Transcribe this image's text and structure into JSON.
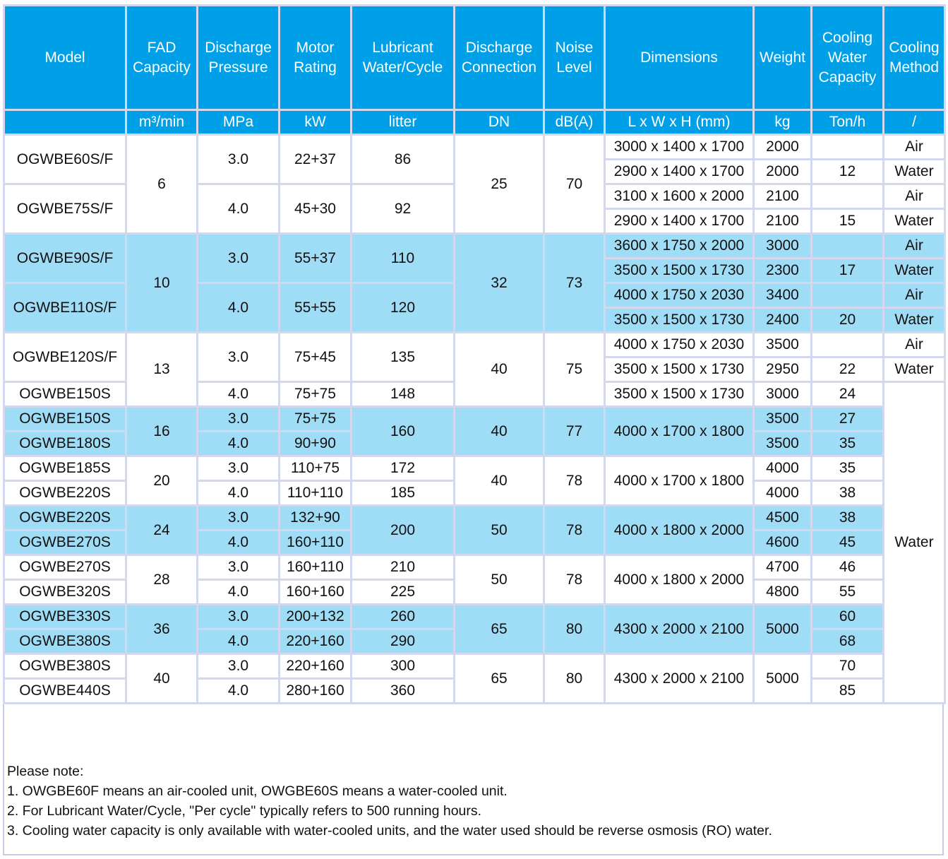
{
  "header": {
    "model": "Model",
    "fad": [
      "FAD",
      "Capacity"
    ],
    "discharge_pressure": [
      "Discharge",
      "Pressure"
    ],
    "motor_rating": [
      "Motor",
      "Rating"
    ],
    "lubricant": [
      "Lubricant",
      "Water/Cycle"
    ],
    "discharge_connection": [
      "Discharge",
      "Connection"
    ],
    "noise": [
      "Noise",
      "Level"
    ],
    "dimensions": "Dimensions",
    "weight": "Weight",
    "cooling_water": [
      "Cooling",
      "Water",
      "Capacity"
    ],
    "cooling_method": [
      "Cooling",
      "Method"
    ]
  },
  "units": {
    "fad": "m³/min",
    "pressure": "MPa",
    "motor": "kW",
    "lubricant": "litter",
    "connection": "DN",
    "noise": "dB(A)",
    "dimensions": "L x W x H (mm)",
    "weight": "kg",
    "cooling_water": "Ton/h",
    "cooling_method": "/"
  },
  "groups": [
    {
      "fad": "6",
      "connection": "25",
      "noise": "70",
      "models": [
        {
          "model": "OGWBE60S/F",
          "pressure": "3.0",
          "motor": "22+37",
          "lubricant": "86",
          "variants": [
            {
              "dimensions": "3000 x 1400 x 1700",
              "weight": "2000",
              "cooling_water": "",
              "cooling_method": "Air"
            },
            {
              "dimensions": "2900 x 1400 x 1700",
              "weight": "2000",
              "cooling_water": "12",
              "cooling_method": "Water"
            }
          ]
        },
        {
          "model": "OGWBE75S/F",
          "pressure": "4.0",
          "motor": "45+30",
          "lubricant": "92",
          "variants": [
            {
              "dimensions": "3100 x 1600 x 2000",
              "weight": "2100",
              "cooling_water": "",
              "cooling_method": "Air"
            },
            {
              "dimensions": "2900 x 1400 x 1700",
              "weight": "2100",
              "cooling_water": "15",
              "cooling_method": "Water"
            }
          ]
        }
      ]
    },
    {
      "fad": "10",
      "connection": "32",
      "noise": "73",
      "models": [
        {
          "model": "OGWBE90S/F",
          "pressure": "3.0",
          "motor": "55+37",
          "lubricant": "110",
          "variants": [
            {
              "dimensions": "3600 x 1750 x 2000",
              "weight": "3000",
              "cooling_water": "",
              "cooling_method": "Air"
            },
            {
              "dimensions": "3500 x 1500 x 1730",
              "weight": "2300",
              "cooling_water": "17",
              "cooling_method": "Water"
            }
          ]
        },
        {
          "model": "OGWBE110S/F",
          "pressure": "4.0",
          "motor": "55+55",
          "lubricant": "120",
          "variants": [
            {
              "dimensions": "4000 x 1750 x 2030",
              "weight": "3400",
              "cooling_water": "",
              "cooling_method": "Air"
            },
            {
              "dimensions": "3500 x 1500 x 1730",
              "weight": "2400",
              "cooling_water": "20",
              "cooling_method": "Water"
            }
          ]
        }
      ]
    },
    {
      "fad": "13",
      "connection": "40",
      "noise": "75",
      "model_a": {
        "model": "OGWBE120S/F",
        "pressure": "3.0",
        "motor": "75+45",
        "lubricant": "135",
        "variants": [
          {
            "dimensions": "4000 x 1750 x 2030",
            "weight": "3500",
            "cooling_water": "",
            "cooling_method": "Air"
          },
          {
            "dimensions": "3500 x 1500 x 1730",
            "weight": "2950",
            "cooling_water": "22",
            "cooling_method": "Water"
          }
        ]
      },
      "model_b": {
        "model": "OGWBE150S",
        "pressure": "4.0",
        "motor": "75+75",
        "lubricant": "148",
        "dimensions": "3500 x 1500 x 1730",
        "weight": "3000",
        "cooling_water": "24"
      }
    }
  ],
  "water_method": "Water",
  "pairs": [
    {
      "fad": "16",
      "lubricant": "160",
      "connection": "40",
      "noise": "77",
      "dimensions": "4000 x 1700 x 1800",
      "weight": "",
      "rows": [
        {
          "model": "OGWBE150S",
          "pressure": "3.0",
          "motor": "75+75",
          "weight": "3500",
          "cooling_water": "27"
        },
        {
          "model": "OGWBE180S",
          "pressure": "4.0",
          "motor": "90+90",
          "weight": "3500",
          "cooling_water": "35"
        }
      ]
    },
    {
      "fad": "20",
      "lubricant": "",
      "connection": "40",
      "noise": "78",
      "dimensions": "4000 x 1700 x 1800",
      "weight": "",
      "rows": [
        {
          "model": "OGWBE185S",
          "pressure": "3.0",
          "motor": "110+75",
          "lubricant": "172",
          "weight": "4000",
          "cooling_water": "35"
        },
        {
          "model": "OGWBE220S",
          "pressure": "4.0",
          "motor": "110+110",
          "lubricant": "185",
          "weight": "4000",
          "cooling_water": "38"
        }
      ]
    },
    {
      "fad": "24",
      "lubricant": "200",
      "connection": "50",
      "noise": "78",
      "dimensions": "4000 x 1800 x 2000",
      "weight": "",
      "rows": [
        {
          "model": "OGWBE220S",
          "pressure": "3.0",
          "motor": "132+90",
          "weight": "4500",
          "cooling_water": "38"
        },
        {
          "model": "OGWBE270S",
          "pressure": "4.0",
          "motor": "160+110",
          "weight": "4600",
          "cooling_water": "45"
        }
      ]
    },
    {
      "fad": "28",
      "lubricant": "",
      "connection": "50",
      "noise": "78",
      "dimensions": "4000 x 1800 x 2000",
      "weight": "",
      "rows": [
        {
          "model": "OGWBE270S",
          "pressure": "3.0",
          "motor": "160+110",
          "lubricant": "210",
          "weight": "4700",
          "cooling_water": "46"
        },
        {
          "model": "OGWBE320S",
          "pressure": "4.0",
          "motor": "160+160",
          "lubricant": "225",
          "weight": "4800",
          "cooling_water": "55"
        }
      ]
    },
    {
      "fad": "36",
      "lubricant": "",
      "connection": "65",
      "noise": "80",
      "dimensions": "4300 x 2000 x 2100",
      "weight": "5000",
      "rows": [
        {
          "model": "OGWBE330S",
          "pressure": "3.0",
          "motor": "200+132",
          "lubricant": "260",
          "cooling_water": "60"
        },
        {
          "model": "OGWBE380S",
          "pressure": "4.0",
          "motor": "220+160",
          "lubricant": "290",
          "cooling_water": "68"
        }
      ]
    },
    {
      "fad": "40",
      "lubricant": "",
      "connection": "65",
      "noise": "80",
      "dimensions": "4300 x 2000 x 2100",
      "weight": "5000",
      "rows": [
        {
          "model": "OGWBE380S",
          "pressure": "3.0",
          "motor": "220+160",
          "lubricant": "300",
          "cooling_water": "70"
        },
        {
          "model": "OGWBE440S",
          "pressure": "4.0",
          "motor": "280+160",
          "lubricant": "360",
          "cooling_water": "85"
        }
      ]
    }
  ],
  "notes": {
    "title": "Please note:",
    "items": [
      "1. OWGBE60F means an air-cooled unit, OWGBE60S means a water-cooled unit.",
      "2. For Lubricant Water/Cycle, \"Per cycle\" typically refers to 500 running hours.",
      "3. Cooling water capacity is only available with water-cooled units, and the water used should be reverse osmosis (RO) water."
    ]
  }
}
